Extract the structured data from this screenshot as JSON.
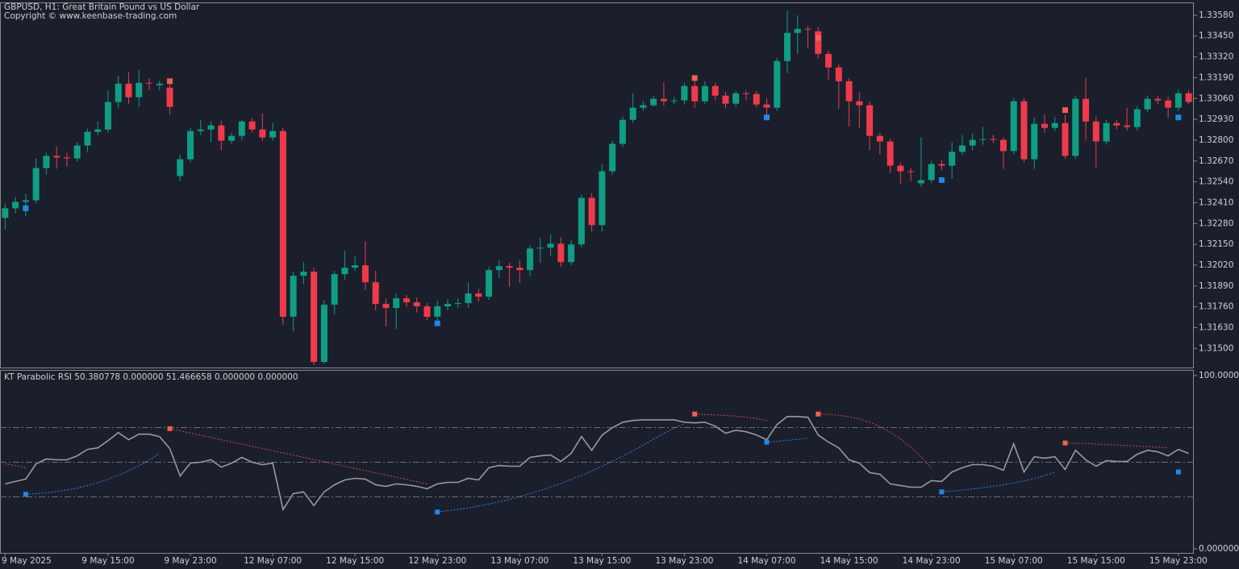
{
  "chart_data": [
    {
      "type": "candlestick",
      "title": "GBPUSD, H1:  Great Britain Pound vs US Dollar",
      "subtitle": "Copyright © www.keenbase-trading.com",
      "up_color": "#0f9e84",
      "down_color": "#f03a4b",
      "buy_color": "#1e88f0",
      "sell_color": "#f2604d",
      "categories": [
        "9 May 2025",
        null,
        null,
        null,
        null,
        null,
        null,
        null,
        null,
        null,
        "9 May 15:00",
        null,
        null,
        null,
        null,
        null,
        null,
        null,
        "9 May 23:00",
        null,
        null,
        null,
        null,
        null,
        null,
        null,
        "12 May 07:00",
        null,
        null,
        null,
        null,
        null,
        null,
        null,
        "12 May 15:00",
        null,
        null,
        null,
        null,
        null,
        null,
        null,
        "12 May 23:00",
        null,
        null,
        null,
        null,
        null,
        null,
        null,
        "13 May 07:00",
        null,
        null,
        null,
        null,
        null,
        null,
        null,
        "13 May 15:00",
        null,
        null,
        null,
        null,
        null,
        null,
        null,
        "13 May 23:00",
        null,
        null,
        null,
        null,
        null,
        null,
        null,
        "14 May 07:00",
        null,
        null,
        null,
        null,
        null,
        null,
        null,
        "14 May 15:00",
        null,
        null,
        null,
        null,
        null,
        null,
        null,
        "14 May 23:00",
        null,
        null,
        null,
        null,
        null,
        null,
        null,
        "15 May 07:00",
        null,
        null,
        null,
        null,
        null,
        null,
        null,
        "15 May 15:00",
        null,
        null,
        null,
        null,
        null,
        null,
        null,
        "15 May 23:00",
        null
      ],
      "open": [
        1.32315,
        1.32375,
        1.32415,
        1.32425,
        1.32626,
        1.32702,
        1.32692,
        1.32686,
        1.32767,
        1.32852,
        1.32867,
        1.33038,
        1.33153,
        1.33068,
        1.33158,
        1.33143,
        1.33128,
        1.32576,
        1.32681,
        1.32857,
        1.32867,
        1.32892,
        1.32797,
        1.32827,
        1.32917,
        1.32867,
        1.32817,
        1.32857,
        1.31698,
        1.31954,
        1.31979,
        1.31416,
        1.31773,
        1.31964,
        1.32004,
        1.32019,
        1.31913,
        1.31778,
        1.31753,
        1.31813,
        1.31788,
        1.31763,
        1.31698,
        1.31763,
        1.31778,
        1.31783,
        1.31843,
        1.31823,
        1.31989,
        1.32014,
        1.32004,
        1.31989,
        1.32124,
        1.32129,
        1.32154,
        1.32039,
        1.32149,
        1.3244,
        1.3227,
        1.32606,
        1.32777,
        1.32927,
        1.33003,
        1.33018,
        1.33058,
        1.33043,
        1.33048,
        1.33138,
        1.33043,
        1.33138,
        1.33078,
        1.33028,
        1.33093,
        1.33088,
        1.33023,
        1.33003,
        1.33294,
        1.3347,
        1.33495,
        1.3348,
        1.33339,
        1.33254,
        1.33168,
        1.33043,
        1.33018,
        1.32827,
        1.32792,
        1.32641,
        1.32606,
        1.32531,
        1.32551,
        1.32651,
        1.32641,
        1.32727,
        1.32767,
        1.32802,
        1.32807,
        1.32802,
        1.32732,
        1.33043,
        1.32681,
        1.32902,
        1.32877,
        1.32907,
        1.32702,
        1.33058,
        1.32917,
        1.32792,
        1.32907,
        1.32892,
        1.32882,
        1.32993,
        1.33058,
        1.33048,
        1.33003,
        1.33093
      ],
      "high": [
        1.32405,
        1.32445,
        1.32465,
        1.32686,
        1.32722,
        1.32762,
        1.32722,
        1.32787,
        1.32872,
        1.32917,
        1.33108,
        1.33203,
        1.33223,
        1.33238,
        1.33188,
        1.33173,
        1.33148,
        1.32711,
        1.32877,
        1.32927,
        1.32917,
        1.32922,
        1.32847,
        1.32927,
        1.32937,
        1.32967,
        1.32907,
        1.32877,
        1.31979,
        1.32039,
        1.32004,
        1.31803,
        1.31984,
        1.32109,
        1.32079,
        1.32169,
        1.31983,
        1.31813,
        1.31843,
        1.31833,
        1.31818,
        1.31783,
        1.31798,
        1.31808,
        1.31813,
        1.31908,
        1.31873,
        1.32009,
        1.32049,
        1.32034,
        1.32049,
        1.32144,
        1.32189,
        1.32214,
        1.32194,
        1.32174,
        1.3246,
        1.3247,
        1.32651,
        1.32797,
        1.32947,
        1.33093,
        1.33043,
        1.33078,
        1.33163,
        1.33068,
        1.33158,
        1.33178,
        1.33168,
        1.33158,
        1.33103,
        1.33108,
        1.33113,
        1.33108,
        1.33063,
        1.33314,
        1.3361,
        1.3358,
        1.33515,
        1.33505,
        1.33359,
        1.33274,
        1.33188,
        1.33098,
        1.33043,
        1.32847,
        1.32812,
        1.32661,
        1.32626,
        1.32817,
        1.32671,
        1.32676,
        1.32787,
        1.32832,
        1.32842,
        1.32882,
        1.32832,
        1.32817,
        1.33063,
        1.33063,
        1.32942,
        1.32962,
        1.32947,
        1.32957,
        1.33078,
        1.33188,
        1.32947,
        1.32927,
        1.32927,
        1.33003,
        1.33013,
        1.33078,
        1.33078,
        1.33073,
        1.33118,
        1.33113
      ],
      "low": [
        1.32245,
        1.32345,
        1.32325,
        1.32405,
        1.32586,
        1.32622,
        1.32636,
        1.32666,
        1.32727,
        1.32832,
        1.32847,
        1.32998,
        1.33028,
        1.33008,
        1.33113,
        1.33113,
        1.32958,
        1.32546,
        1.32661,
        1.32832,
        1.32787,
        1.32737,
        1.32777,
        1.32797,
        1.32847,
        1.32797,
        1.32797,
        1.31648,
        1.31608,
        1.31903,
        1.31396,
        1.31406,
        1.31713,
        1.31929,
        1.31984,
        1.31863,
        1.31738,
        1.31638,
        1.31623,
        1.31758,
        1.31723,
        1.31678,
        1.31678,
        1.31738,
        1.31753,
        1.31753,
        1.31793,
        1.31803,
        1.31939,
        1.31884,
        1.31909,
        1.31949,
        1.32034,
        1.32079,
        1.32009,
        1.32019,
        1.32129,
        1.3223,
        1.3223,
        1.32586,
        1.32757,
        1.32907,
        1.32983,
        1.33008,
        1.33013,
        1.33023,
        1.33023,
        1.33003,
        1.33023,
        1.33048,
        1.32998,
        1.33008,
        1.33048,
        1.33003,
        1.32927,
        1.32983,
        1.33219,
        1.33339,
        1.33375,
        1.33309,
        1.33179,
        1.32997,
        1.32887,
        1.32877,
        1.32737,
        1.32712,
        1.32596,
        1.32526,
        1.32546,
        1.32511,
        1.32531,
        1.32611,
        1.32561,
        1.32707,
        1.32737,
        1.32772,
        1.32782,
        1.32621,
        1.32712,
        1.32661,
        1.32621,
        1.32847,
        1.32857,
        1.32682,
        1.32682,
        1.32797,
        1.32631,
        1.32772,
        1.32867,
        1.32862,
        1.32862,
        1.32973,
        1.33023,
        1.32937,
        1.32983,
        1.33023
      ],
      "close": [
        1.32375,
        1.32415,
        1.32425,
        1.32626,
        1.32702,
        1.32692,
        1.32686,
        1.32767,
        1.32852,
        1.32867,
        1.33038,
        1.33153,
        1.33068,
        1.33158,
        1.33153,
        1.33153,
        1.33008,
        1.32681,
        1.32857,
        1.32867,
        1.32892,
        1.32797,
        1.32827,
        1.32917,
        1.32867,
        1.32817,
        1.32857,
        1.31698,
        1.31954,
        1.31979,
        1.31416,
        1.31773,
        1.31964,
        1.32004,
        1.32019,
        1.31913,
        1.31778,
        1.31753,
        1.31813,
        1.31788,
        1.31763,
        1.31698,
        1.31763,
        1.31778,
        1.31783,
        1.31843,
        1.31823,
        1.31989,
        1.32014,
        1.32004,
        1.31989,
        1.32124,
        1.32129,
        1.32154,
        1.32039,
        1.32149,
        1.3244,
        1.3227,
        1.32606,
        1.32777,
        1.32927,
        1.33003,
        1.33018,
        1.33058,
        1.33043,
        1.33048,
        1.33138,
        1.33043,
        1.33138,
        1.33078,
        1.33028,
        1.33093,
        1.33088,
        1.33023,
        1.33003,
        1.33294,
        1.3347,
        1.33495,
        1.3349,
        1.33339,
        1.33254,
        1.33168,
        1.33043,
        1.33018,
        1.32827,
        1.32792,
        1.32641,
        1.32606,
        1.32601,
        1.32551,
        1.32651,
        1.32641,
        1.32727,
        1.32767,
        1.32802,
        1.32807,
        1.32802,
        1.32732,
        1.33043,
        1.32681,
        1.32902,
        1.32877,
        1.32907,
        1.32702,
        1.33058,
        1.32917,
        1.32792,
        1.32907,
        1.32892,
        1.32882,
        1.32993,
        1.33058,
        1.33048,
        1.33003,
        1.33093,
        1.33038
      ],
      "buy_signals": [
        {
          "x": 2,
          "y": 1.32375
        },
        {
          "x": 42,
          "y": 1.31657
        },
        {
          "x": 74,
          "y": 1.32942
        },
        {
          "x": 91,
          "y": 1.32551
        },
        {
          "x": 114,
          "y": 1.32942
        }
      ],
      "sell_signals": [
        {
          "x": 16,
          "y": 1.33168
        },
        {
          "x": 67,
          "y": 1.33188
        },
        {
          "x": 79,
          "y": 1.33439
        },
        {
          "x": 103,
          "y": 1.32988
        }
      ],
      "ylim": [
        1.31381,
        1.33655
      ],
      "yticks": [
        {
          "value": 1.3358,
          "label": "1.33580"
        },
        {
          "value": 1.3345,
          "label": "1.33450"
        },
        {
          "value": 1.3332,
          "label": "1.33320"
        },
        {
          "value": 1.3319,
          "label": "1.33190"
        },
        {
          "value": 1.3306,
          "label": "1.33060"
        },
        {
          "value": 1.3293,
          "label": "1.32930"
        },
        {
          "value": 1.328,
          "label": "1.32800"
        },
        {
          "value": 1.3267,
          "label": "1.32670"
        },
        {
          "value": 1.3254,
          "label": "1.32540"
        },
        {
          "value": 1.3241,
          "label": "1.32410"
        },
        {
          "value": 1.3228,
          "label": "1.32280"
        },
        {
          "value": 1.3215,
          "label": "1.32150"
        },
        {
          "value": 1.3202,
          "label": "1.32020"
        },
        {
          "value": 1.3189,
          "label": "1.31890"
        },
        {
          "value": 1.3176,
          "label": "1.31760"
        },
        {
          "value": 1.3163,
          "label": "1.31630"
        },
        {
          "value": 1.315,
          "label": "1.31500"
        }
      ]
    },
    {
      "type": "line",
      "title": "KT Parabolic RSI 50.380778 0.000000 51.466658 0.000000 0.000000",
      "series": [
        {
          "color": "#9a9a9a",
          "style": "solid",
          "values": [
            37.5,
            38.9,
            40.3,
            49.1,
            51.9,
            51.4,
            51.4,
            53.7,
            57.4,
            58.3,
            62.5,
            67.1,
            63.0,
            66.2,
            66.2,
            64.8,
            57.9,
            42.1,
            49.5,
            50.0,
            51.4,
            47.2,
            49.5,
            52.8,
            50.0,
            48.6,
            49.5,
            22.7,
            31.9,
            32.9,
            25.0,
            32.9,
            37.0,
            39.8,
            40.7,
            40.3,
            37.0,
            36.1,
            37.5,
            37.0,
            36.1,
            34.7,
            37.5,
            38.4,
            38.4,
            40.7,
            39.8,
            46.8,
            48.1,
            47.7,
            47.7,
            52.8,
            53.7,
            54.2,
            50.5,
            55.1,
            64.8,
            56.9,
            65.7,
            69.9,
            73.1,
            74.1,
            74.5,
            74.5,
            74.5,
            74.5,
            73.1,
            72.7,
            73.1,
            70.8,
            66.7,
            68.5,
            67.6,
            65.7,
            63.0,
            71.8,
            76.4,
            76.4,
            75.9,
            65.7,
            61.6,
            58.3,
            51.4,
            49.5,
            44.0,
            43.1,
            37.5,
            36.6,
            35.6,
            35.6,
            39.4,
            38.9,
            44.4,
            46.8,
            48.6,
            48.6,
            47.7,
            45.4,
            60.6,
            44.4,
            53.2,
            52.3,
            53.2,
            45.8,
            56.9,
            51.4,
            47.7,
            50.9,
            50.5,
            50.5,
            54.6,
            56.9,
            56.0,
            53.7,
            57.4,
            55.1
          ]
        },
        {
          "color": "#c84c48",
          "style": "dotted",
          "values": [
            49.1,
            48.1,
            46.8,
            null,
            null,
            null,
            null,
            null,
            null,
            null,
            null,
            null,
            null,
            null,
            null,
            null,
            69.4,
            68.1,
            66.8,
            65.6,
            64.3,
            63.0,
            61.7,
            60.5,
            59.2,
            57.9,
            56.6,
            55.4,
            54.1,
            52.8,
            51.5,
            50.3,
            49.0,
            47.7,
            46.4,
            45.2,
            43.9,
            42.6,
            41.3,
            40.1,
            38.8,
            37.5,
            null,
            null,
            null,
            null,
            null,
            null,
            null,
            null,
            null,
            null,
            null,
            null,
            null,
            null,
            null,
            null,
            null,
            null,
            null,
            null,
            null,
            null,
            null,
            null,
            null,
            77.8,
            77.6,
            77.3,
            77.0,
            76.6,
            76.0,
            75.2,
            74.1,
            null,
            null,
            null,
            null,
            77.8,
            77.6,
            77.1,
            76.3,
            75.0,
            73.1,
            70.6,
            67.4,
            63.4,
            58.6,
            53.0,
            46.8,
            null,
            null,
            null,
            null,
            null,
            null,
            null,
            null,
            null,
            null,
            null,
            null,
            61.1,
            61.0,
            60.8,
            60.5,
            60.2,
            59.9,
            59.6,
            59.3,
            59.0,
            58.7,
            58.3,
            null,
            null
          ]
        },
        {
          "color": "#2d82d8",
          "style": "dotted",
          "values": [
            null,
            null,
            31.5,
            31.9,
            32.4,
            33.1,
            34.0,
            35.1,
            36.5,
            38.2,
            40.2,
            42.5,
            45.1,
            48.0,
            51.4,
            55.1,
            null,
            null,
            null,
            null,
            null,
            null,
            null,
            null,
            null,
            null,
            null,
            null,
            null,
            null,
            null,
            null,
            null,
            null,
            null,
            null,
            null,
            null,
            null,
            null,
            null,
            null,
            21.3,
            22.0,
            22.8,
            23.7,
            24.7,
            25.9,
            27.2,
            28.6,
            30.2,
            31.9,
            33.7,
            35.7,
            37.8,
            40.1,
            42.5,
            45.0,
            47.7,
            50.5,
            53.5,
            56.6,
            59.9,
            63.3,
            66.6,
            69.6,
            72.2,
            null,
            null,
            null,
            null,
            null,
            null,
            null,
            61.6,
            62.1,
            62.6,
            63.2,
            63.9,
            null,
            null,
            null,
            null,
            null,
            null,
            null,
            null,
            null,
            null,
            null,
            null,
            32.9,
            33.4,
            34.0,
            34.6,
            35.3,
            36.1,
            37.0,
            38.0,
            39.2,
            40.6,
            42.3,
            44.4,
            null,
            null,
            null,
            null,
            null,
            null,
            null,
            null,
            null,
            null,
            null,
            null,
            null
          ]
        }
      ],
      "buy_signals": [
        {
          "x": 2,
          "y": 31.5
        },
        {
          "x": 42,
          "y": 21.3
        },
        {
          "x": 74,
          "y": 61.6
        },
        {
          "x": 91,
          "y": 32.9
        },
        {
          "x": 114,
          "y": 44.4
        }
      ],
      "sell_signals": [
        {
          "x": 16,
          "y": 69.4
        },
        {
          "x": 67,
          "y": 77.8
        },
        {
          "x": 79,
          "y": 77.8
        },
        {
          "x": 103,
          "y": 61.1
        }
      ],
      "levels": [
        70,
        50,
        30
      ],
      "ylim": [
        -2.3,
        102.8
      ],
      "yticks": [
        {
          "value": 100,
          "label": "100.000000"
        },
        {
          "value": 0,
          "label": "0.000000"
        }
      ]
    }
  ]
}
